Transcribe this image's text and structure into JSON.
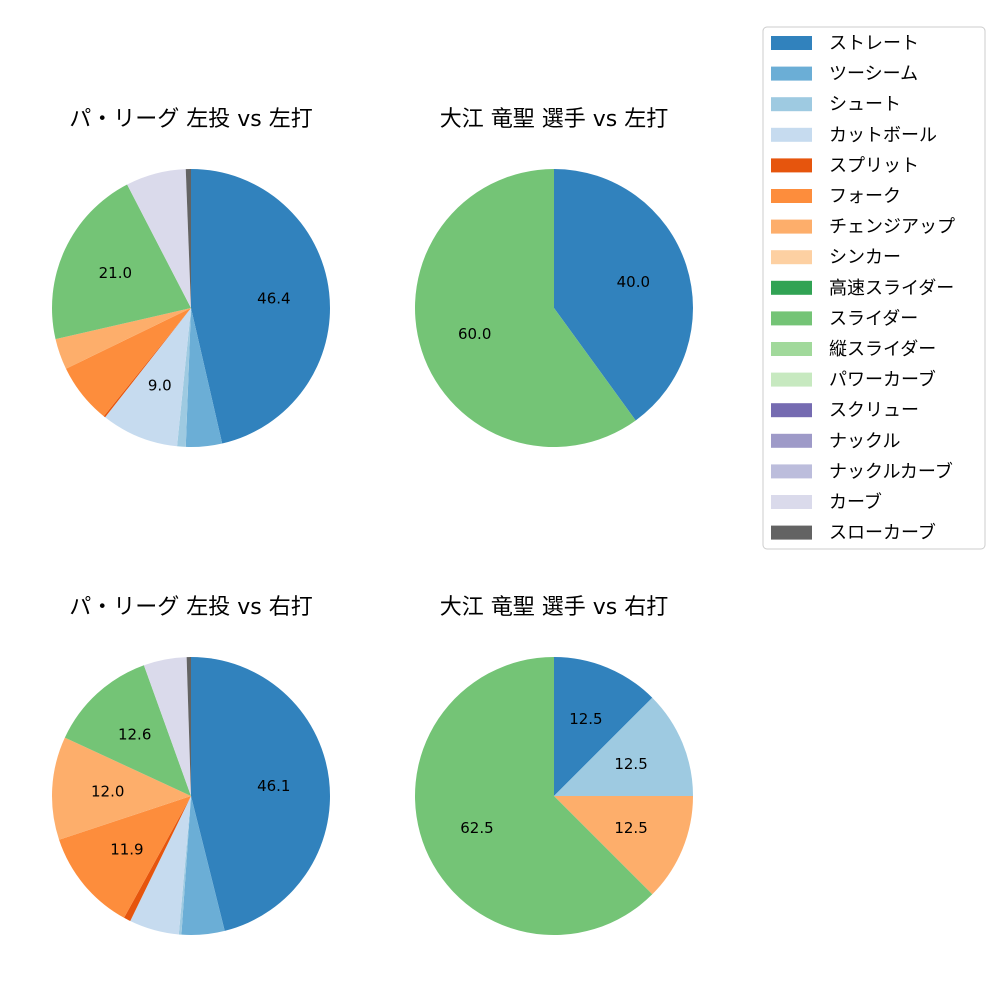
{
  "chart_data": [
    {
      "type": "pie",
      "title": "パ・リーグ 左投 vs 左打",
      "slices": [
        {
          "name": "ストレート",
          "value": 46.4,
          "label": "46.4"
        },
        {
          "name": "ツーシーム",
          "value": 4.2,
          "label": ""
        },
        {
          "name": "シュート",
          "value": 1.0,
          "label": ""
        },
        {
          "name": "カットボール",
          "value": 9.0,
          "label": "9.0"
        },
        {
          "name": "スプリット",
          "value": 0.2,
          "label": ""
        },
        {
          "name": "フォーク",
          "value": 7.0,
          "label": ""
        },
        {
          "name": "チェンジアップ",
          "value": 3.6,
          "label": ""
        },
        {
          "name": "スライダー",
          "value": 21.0,
          "label": "21.0"
        },
        {
          "name": "カーブ",
          "value": 7.0,
          "label": ""
        },
        {
          "name": "スローカーブ",
          "value": 0.6,
          "label": ""
        }
      ]
    },
    {
      "type": "pie",
      "title": "大江 竜聖 選手 vs 左打",
      "slices": [
        {
          "name": "ストレート",
          "value": 40.0,
          "label": "40.0"
        },
        {
          "name": "スライダー",
          "value": 60.0,
          "label": "60.0"
        }
      ]
    },
    {
      "type": "pie",
      "title": "パ・リーグ 左投 vs 右打",
      "slices": [
        {
          "name": "ストレート",
          "value": 46.1,
          "label": "46.1"
        },
        {
          "name": "ツーシーム",
          "value": 5.0,
          "label": ""
        },
        {
          "name": "シュート",
          "value": 0.3,
          "label": ""
        },
        {
          "name": "カットボール",
          "value": 5.8,
          "label": ""
        },
        {
          "name": "スプリット",
          "value": 0.8,
          "label": ""
        },
        {
          "name": "フォーク",
          "value": 11.9,
          "label": "11.9"
        },
        {
          "name": "チェンジアップ",
          "value": 12.0,
          "label": "12.0"
        },
        {
          "name": "スライダー",
          "value": 12.6,
          "label": "12.6"
        },
        {
          "name": "カーブ",
          "value": 5.0,
          "label": ""
        },
        {
          "name": "スローカーブ",
          "value": 0.5,
          "label": ""
        }
      ]
    },
    {
      "type": "pie",
      "title": "大江 竜聖 選手 vs 右打",
      "slices": [
        {
          "name": "ストレート",
          "value": 12.5,
          "label": "12.5"
        },
        {
          "name": "シュート",
          "value": 12.5,
          "label": "12.5"
        },
        {
          "name": "チェンジアップ",
          "value": 12.5,
          "label": "12.5"
        },
        {
          "name": "スライダー",
          "value": 62.5,
          "label": "62.5"
        }
      ]
    }
  ],
  "legend": [
    {
      "name": "ストレート",
      "color": "#3182bd"
    },
    {
      "name": "ツーシーム",
      "color": "#6baed6"
    },
    {
      "name": "シュート",
      "color": "#9ecae1"
    },
    {
      "name": "カットボール",
      "color": "#c6dbef"
    },
    {
      "name": "スプリット",
      "color": "#e6550d"
    },
    {
      "name": "フォーク",
      "color": "#fd8d3c"
    },
    {
      "name": "チェンジアップ",
      "color": "#fdae6b"
    },
    {
      "name": "シンカー",
      "color": "#fdd0a2"
    },
    {
      "name": "高速スライダー",
      "color": "#31a354"
    },
    {
      "name": "スライダー",
      "color": "#74c476"
    },
    {
      "name": "縦スライダー",
      "color": "#a1d99b"
    },
    {
      "name": "パワーカーブ",
      "color": "#c7e9c0"
    },
    {
      "name": "スクリュー",
      "color": "#756bb1"
    },
    {
      "name": "ナックル",
      "color": "#9e9ac8"
    },
    {
      "name": "ナックルカーブ",
      "color": "#bcbddc"
    },
    {
      "name": "カーブ",
      "color": "#dadaeb"
    },
    {
      "name": "スローカーブ",
      "color": "#636363"
    }
  ]
}
